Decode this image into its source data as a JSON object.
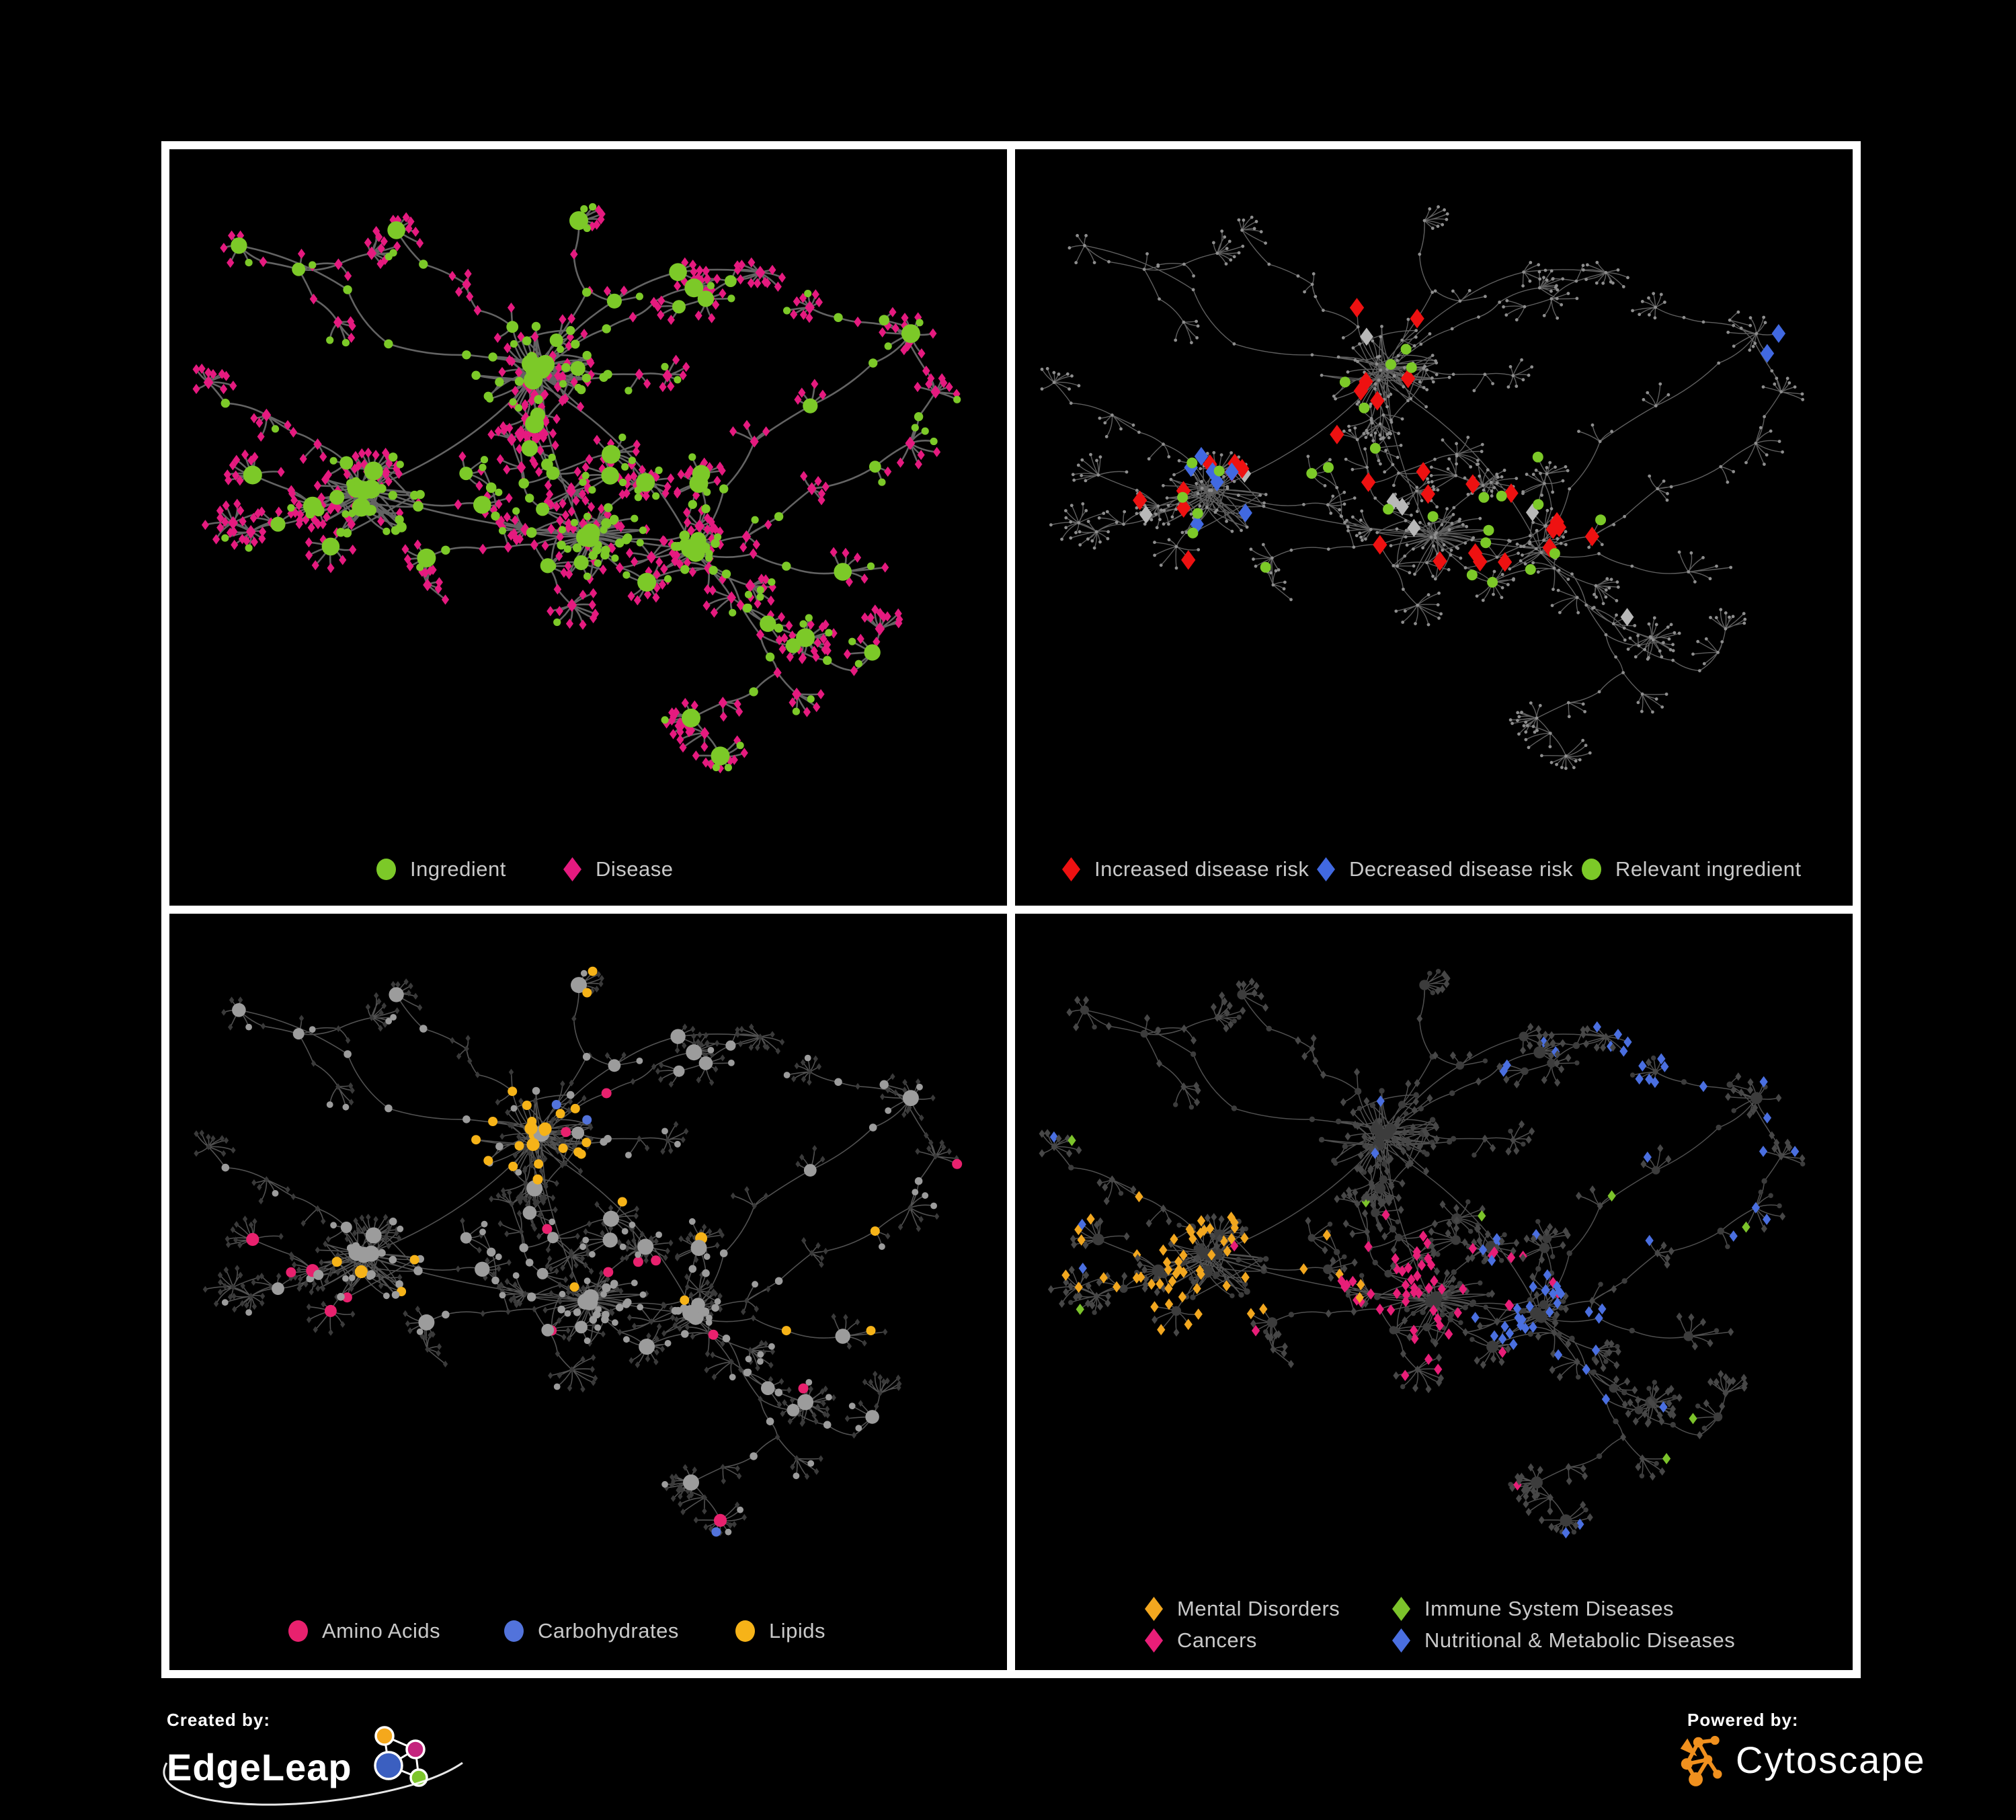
{
  "page": {
    "background": "#000000",
    "frame_color": "#ffffff",
    "legend_text_color": "#C9C9C9"
  },
  "panels": [
    {
      "id": "ingredient-disease-network",
      "legend": [
        {
          "label": "Ingredient",
          "shape": "circle",
          "color": "#7CC928"
        },
        {
          "label": "Disease",
          "shape": "diamond",
          "color": "#E51A7F"
        }
      ]
    },
    {
      "id": "disease-risk-network",
      "legend": [
        {
          "label": "Increased disease risk",
          "shape": "diamond",
          "color": "#EE1111"
        },
        {
          "label": "Decreased disease risk",
          "shape": "diamond",
          "color": "#4169E1"
        },
        {
          "label": "Relevant ingredient",
          "shape": "circle",
          "color": "#7CC928"
        }
      ]
    },
    {
      "id": "nutrient-class-network",
      "legend": [
        {
          "label": "Amino Acids",
          "shape": "circle",
          "color": "#E8216E"
        },
        {
          "label": "Carbohydrates",
          "shape": "circle",
          "color": "#5273DB"
        },
        {
          "label": "Lipids",
          "shape": "circle",
          "color": "#F6B318"
        }
      ]
    },
    {
      "id": "disease-class-network",
      "legend": [
        {
          "label": "Mental Disorders",
          "shape": "diamond",
          "color": "#F2A71F"
        },
        {
          "label": "Immune System Diseases",
          "shape": "diamond",
          "color": "#7CC32B"
        },
        {
          "label": "Cancers",
          "shape": "diamond",
          "color": "#E81E78"
        },
        {
          "label": "Nutritional & Metabolic Diseases",
          "shape": "diamond",
          "color": "#4A6FE0"
        }
      ]
    }
  ],
  "network_style": {
    "panel0": {
      "edge": "#6B6B6B",
      "edge_width": 2.6,
      "ingredient": "#7CC928",
      "disease": "#E51A7F"
    },
    "panel1": {
      "edge": "#666666",
      "edge_width": 1.4,
      "base_node": "#8E8E8E",
      "increased": "#EE1111",
      "decreased": "#4169E1",
      "neutral": "#B8B8B8",
      "relevant": "#7CC928"
    },
    "panel2": {
      "edge": "#585858",
      "edge_width": 1.6,
      "ingredient_base": "#9C9C9C",
      "disease_base": "#3A3A3A",
      "amino": "#E8216E",
      "carbs": "#5273DB",
      "lipids": "#F6B318"
    },
    "panel3": {
      "edge": "#565656",
      "edge_width": 1.5,
      "ingredient_base": "#3C3C3C",
      "disease_base": "#474747",
      "mental": "#F2A71F",
      "immune": "#7CC32B",
      "cancers": "#E81E78",
      "nutritional": "#4A6FE0"
    }
  },
  "footer": {
    "created_by_label": "Created by:",
    "created_by_name": "EdgeLeap",
    "powered_by_label": "Powered by:",
    "powered_by_name": "Cytoscape",
    "edgeleap_logo_icon": "network-nodes-icon",
    "edgeleap_logo_colors": {
      "orange": "#F5A81C",
      "magenta": "#C4247E",
      "blue": "#3B5FC0",
      "green": "#7DC52C"
    },
    "cytoscape_icon": "network-graph-icon",
    "cytoscape_icon_color": "#F0901E"
  }
}
